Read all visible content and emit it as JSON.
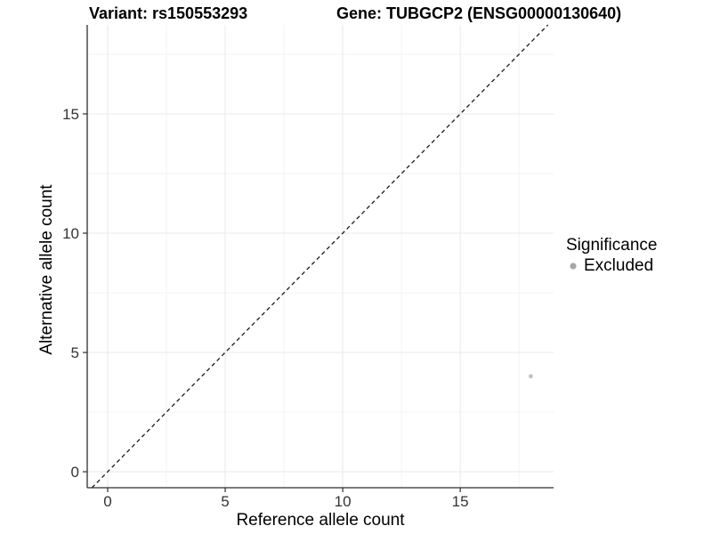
{
  "title_bar": {
    "variant": "Variant: rs150553293",
    "gene": "Gene: TUBGCP2 (ENSG00000130640)"
  },
  "legend": {
    "title": "Significance",
    "items": [
      {
        "label": "Excluded",
        "color": "#a6a6a6"
      }
    ]
  },
  "chart_data": {
    "type": "scatter",
    "title": "Variant: rs150553293 | Gene: TUBGCP2 (ENSG00000130640)",
    "xlabel": "Reference allele count",
    "ylabel": "Alternative allele count",
    "xlim": [
      -0.87,
      18.97
    ],
    "ylim": [
      -0.67,
      18.73
    ],
    "x_ticks": [
      0,
      5,
      10,
      15
    ],
    "y_ticks": [
      0,
      5,
      10,
      15
    ],
    "x_minor_ticks": [
      2.5,
      7.5,
      12.5,
      17.5
    ],
    "y_minor_ticks": [
      2.5,
      7.5,
      12.5,
      17.5
    ],
    "grid": true,
    "legend_position": "right",
    "reference_line": {
      "type": "identity",
      "slope": 1,
      "intercept": 0,
      "style": "dashed",
      "color": "#1a1a1a"
    },
    "series": [
      {
        "name": "Excluded",
        "color": "#c0c0c0",
        "points": [
          {
            "x": 18,
            "y": 4
          }
        ]
      }
    ]
  },
  "colors": {
    "background": "#ffffff",
    "axis_line": "#2e2e2e",
    "tick_label": "#333333",
    "grid_major": "#e9e9e9",
    "grid_minor": "#f3f3f3"
  }
}
